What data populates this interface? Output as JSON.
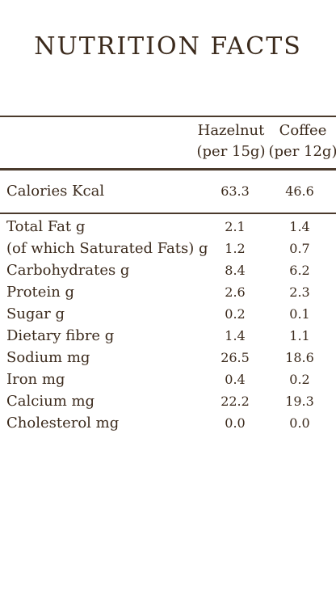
{
  "title": "NUTRITION FACTS",
  "columns": [
    {
      "name": "Hazelnut",
      "serving": "(per 15g)"
    },
    {
      "name": "Coffee",
      "serving": "(per 12g)"
    }
  ],
  "calories": {
    "label": "Calories Kcal",
    "hazelnut": "63.3",
    "coffee": "46.6"
  },
  "nutrients": [
    {
      "label": "Total Fat g",
      "hazelnut": "2.1",
      "coffee": "1.4"
    },
    {
      "label": "(of which Saturated Fats) g",
      "hazelnut": "1.2",
      "coffee": "0.7"
    },
    {
      "label": "Carbohydrates g",
      "hazelnut": "8.4",
      "coffee": "6.2"
    },
    {
      "label": "Protein g",
      "hazelnut": "2.6",
      "coffee": "2.3"
    },
    {
      "label": "Sugar g",
      "hazelnut": "0.2",
      "coffee": "0.1"
    },
    {
      "label": "Dietary fibre g",
      "hazelnut": "1.4",
      "coffee": "1.1"
    },
    {
      "label": "Sodium mg",
      "hazelnut": "26.5",
      "coffee": "18.6"
    },
    {
      "label": "Iron mg",
      "hazelnut": "0.4",
      "coffee": "0.2"
    },
    {
      "label": "Calcium mg",
      "hazelnut": "22.2",
      "coffee": "19.3"
    },
    {
      "label": "Cholesterol mg",
      "hazelnut": "0.0",
      "coffee": "0.0"
    }
  ],
  "colors": {
    "text": "#3b2a1c",
    "rule": "#4a3a2c",
    "background": "#ffffff"
  }
}
